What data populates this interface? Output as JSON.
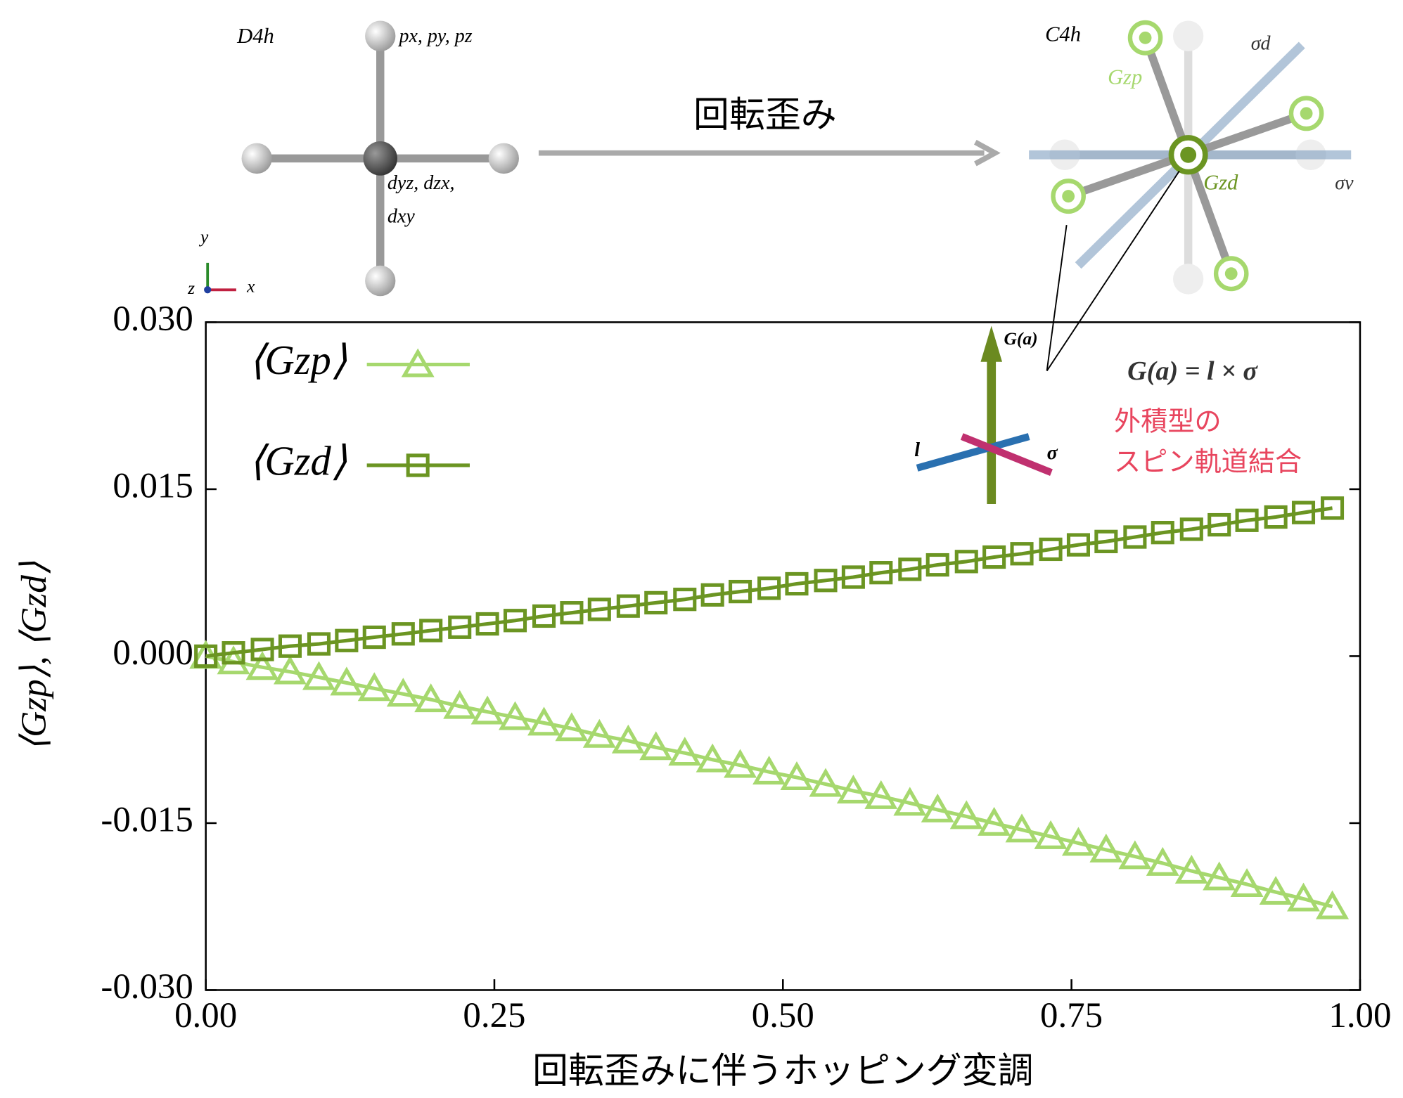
{
  "chart_data": {
    "type": "line",
    "xlabel": "回転歪みに伴うホッピング変調",
    "ylabel": "⟨Gzp⟩, ⟨Gzd⟩",
    "x": [
      0,
      0.024,
      0.049,
      0.073,
      0.098,
      0.122,
      0.146,
      0.171,
      0.195,
      0.22,
      0.244,
      0.268,
      0.293,
      0.317,
      0.341,
      0.366,
      0.39,
      0.415,
      0.439,
      0.463,
      0.488,
      0.512,
      0.537,
      0.561,
      0.585,
      0.61,
      0.634,
      0.659,
      0.683,
      0.707,
      0.732,
      0.756,
      0.78,
      0.805,
      0.829,
      0.854,
      0.878,
      0.902,
      0.927,
      0.951,
      0.976
    ],
    "series": [
      {
        "name": "⟨Gzp⟩",
        "color": "#a6d86e",
        "marker": "triangle",
        "values": [
          0,
          -0.0005,
          -0.001,
          -0.0014,
          -0.0019,
          -0.0024,
          -0.0029,
          -0.0034,
          -0.0039,
          -0.0045,
          -0.005,
          -0.0055,
          -0.006,
          -0.0065,
          -0.0071,
          -0.0076,
          -0.0082,
          -0.0087,
          -0.0093,
          -0.0098,
          -0.0104,
          -0.0109,
          -0.0115,
          -0.0121,
          -0.0126,
          -0.0132,
          -0.0138,
          -0.0144,
          -0.015,
          -0.0156,
          -0.0162,
          -0.0168,
          -0.0174,
          -0.018,
          -0.0186,
          -0.0193,
          -0.0199,
          -0.0205,
          -0.0212,
          -0.0218,
          -0.0225
        ]
      },
      {
        "name": "⟨Gzd⟩",
        "color": "#6b9522",
        "marker": "square",
        "values": [
          0,
          0.0003,
          0.0006,
          0.0009,
          0.0011,
          0.0014,
          0.0017,
          0.002,
          0.0023,
          0.0026,
          0.0029,
          0.0032,
          0.0036,
          0.0039,
          0.0042,
          0.0045,
          0.0048,
          0.0051,
          0.0055,
          0.0058,
          0.0061,
          0.0065,
          0.0068,
          0.0071,
          0.0075,
          0.0078,
          0.0082,
          0.0085,
          0.0089,
          0.0092,
          0.0096,
          0.01,
          0.0103,
          0.0107,
          0.0111,
          0.0114,
          0.0118,
          0.0122,
          0.0125,
          0.0129,
          0.0133
        ]
      }
    ],
    "xlim": [
      0,
      1
    ],
    "ylim": [
      -0.03,
      0.03
    ],
    "xticks": [
      {
        "value": 0,
        "label": "0.00"
      },
      {
        "value": 0.25,
        "label": "0.25"
      },
      {
        "value": 0.5,
        "label": "0.50"
      },
      {
        "value": 0.75,
        "label": "0.75"
      },
      {
        "value": 1,
        "label": "1.00"
      }
    ],
    "yticks": [
      {
        "value": -0.03,
        "label": "-0.030"
      },
      {
        "value": -0.015,
        "label": "-0.015"
      },
      {
        "value": 0,
        "label": "0.000"
      },
      {
        "value": 0.015,
        "label": "0.015"
      },
      {
        "value": 0.03,
        "label": "0.030"
      }
    ],
    "legend": "upper left"
  },
  "diagram": {
    "left_group": "D4h",
    "right_group": "C4h",
    "p_orbitals": "px, py, pz",
    "d_orbitals_1": "dyz, dzx,",
    "d_orbitals_2": "dxy",
    "arrow_label": "回転歪み",
    "gzp": "Gzp",
    "gzd": "Gzd",
    "sigma_d": "σd",
    "sigma_v": "σv",
    "axis_x": "x",
    "axis_y": "y",
    "axis_z": "z",
    "g_label": "G(a)",
    "formula": "G(a) = l × σ",
    "l_label": "l",
    "sigma_label": "σ",
    "note_1": "外積型の",
    "note_2": "スピン軌道結合"
  }
}
